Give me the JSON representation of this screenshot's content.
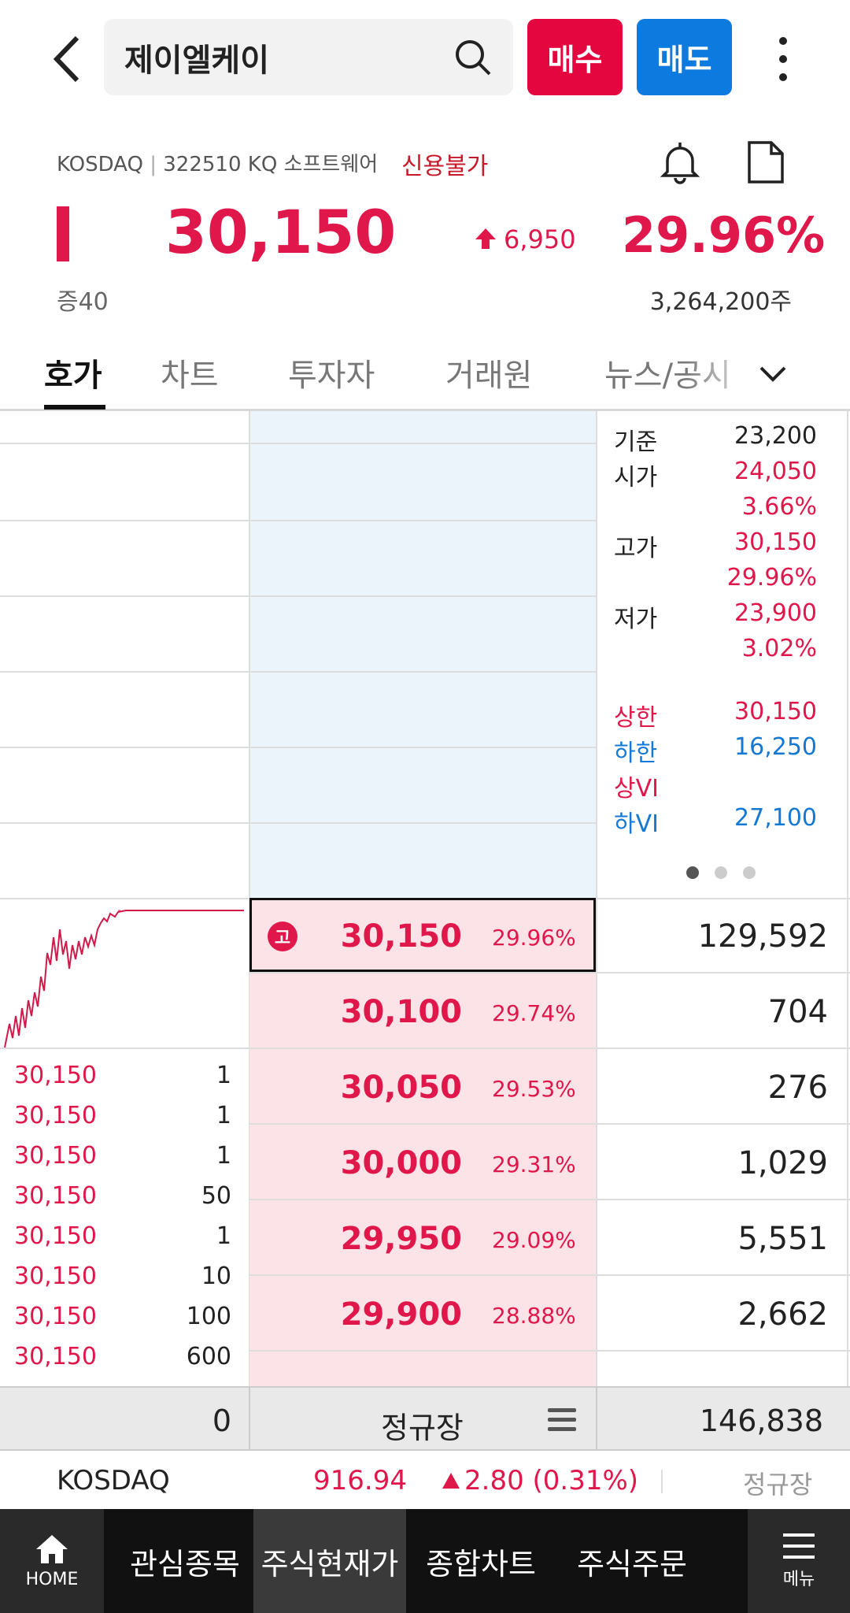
{
  "header": {
    "search_text": "제이엘케이",
    "buy_label": "매수",
    "sell_label": "매도"
  },
  "stock": {
    "market": "KOSDAQ",
    "code_info": "322510 KQ 소프트웨어",
    "credit_status": "신용불가",
    "price": "30,150",
    "change": "6,950",
    "change_pct": "29.96%",
    "margin": "증40",
    "volume": "3,264,200주"
  },
  "tabs": [
    "호가",
    "차트",
    "투자자",
    "거래원",
    "뉴스/공시"
  ],
  "info": {
    "base_label": "기준",
    "base": "23,200",
    "open_label": "시가",
    "open": "24,050",
    "open_pct": "3.66%",
    "high_label": "고가",
    "high": "30,150",
    "high_pct": "29.96%",
    "low_label": "저가",
    "low": "23,900",
    "low_pct": "3.02%",
    "upper_label": "상한",
    "upper": "30,150",
    "lower_label": "하한",
    "lower": "16,250",
    "upvi_label": "상VI",
    "downvi_label": "하VI",
    "downvi": "27,100"
  },
  "bids": [
    {
      "price": "30,150",
      "pct": "29.96%",
      "qty": "129,592"
    },
    {
      "price": "30,100",
      "pct": "29.74%",
      "qty": "704"
    },
    {
      "price": "30,050",
      "pct": "29.53%",
      "qty": "276"
    },
    {
      "price": "30,000",
      "pct": "29.31%",
      "qty": "1,029"
    },
    {
      "price": "29,950",
      "pct": "29.09%",
      "qty": "5,551"
    },
    {
      "price": "29,900",
      "pct": "28.88%",
      "qty": "2,662"
    }
  ],
  "high_badge": "고",
  "trades": [
    {
      "price": "30,150",
      "qty": "1"
    },
    {
      "price": "30,150",
      "qty": "1"
    },
    {
      "price": "30,150",
      "qty": "1"
    },
    {
      "price": "30,150",
      "qty": "50"
    },
    {
      "price": "30,150",
      "qty": "1"
    },
    {
      "price": "30,150",
      "qty": "10"
    },
    {
      "price": "30,150",
      "qty": "100"
    },
    {
      "price": "30,150",
      "qty": "600"
    }
  ],
  "footer": {
    "left_total": "0",
    "session": "정규장",
    "right_total": "146,838"
  },
  "index": {
    "name": "KOSDAQ",
    "value": "916.94",
    "change": "2.80 (0.31%)",
    "session": "정규장"
  },
  "nav": {
    "home": "HOME",
    "items": [
      "관심종목",
      "주식현재가",
      "종합차트",
      "주식주문"
    ],
    "menu": "메뉴"
  }
}
